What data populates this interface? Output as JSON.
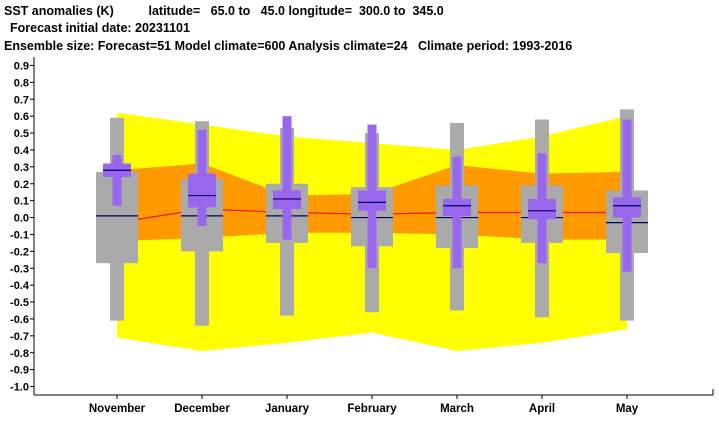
{
  "header": {
    "line1": "SST anomalies (K)          latitude=   65.0 to   45.0 longitude=  300.0 to  345.0",
    "line2": "Forecast initial date: 20231101",
    "line3": "Ensemble size: Forecast=51 Model climate=600 Analysis climate=24   Climate period: 1993-2016"
  },
  "colors": {
    "climate_outer": "#ffff00",
    "climate_inner": "#ff9900",
    "climate_median_line": "#ee1111",
    "forecast_whisker": "#aaaaaa",
    "forecast_box": "#aaaaaa",
    "forecast_median": "#000066",
    "model_box": "#9966ee",
    "model_median": "#000066"
  },
  "chart_data": {
    "type": "box",
    "ylim": [
      -1.05,
      0.95
    ],
    "yticks": [
      "0.9",
      "0.8",
      "0.7",
      "0.6",
      "0.5",
      "0.4",
      "0.3",
      "0.2",
      "0.1",
      "0.0",
      "-0.1",
      "-0.2",
      "-0.3",
      "-0.4",
      "-0.5",
      "-0.6",
      "-0.7",
      "-0.8",
      "-0.9",
      "-1.0"
    ],
    "ytick_values": [
      0.9,
      0.8,
      0.7,
      0.6,
      0.5,
      0.4,
      0.3,
      0.2,
      0.1,
      0.0,
      -0.1,
      -0.2,
      -0.3,
      -0.4,
      -0.5,
      -0.6,
      -0.7,
      -0.8,
      -0.9,
      -1.0
    ],
    "categories": [
      "November",
      "December",
      "January",
      "February",
      "March",
      "April",
      "May"
    ],
    "climate_band": {
      "outer_high": [
        0.62,
        0.55,
        0.48,
        0.44,
        0.4,
        0.48,
        0.6
      ],
      "inner_high": [
        0.28,
        0.32,
        0.13,
        0.14,
        0.31,
        0.26,
        0.27
      ],
      "median": [
        -0.03,
        0.05,
        0.03,
        0.02,
        0.03,
        0.03,
        0.03
      ],
      "inner_low": [
        -0.14,
        -0.12,
        -0.09,
        -0.09,
        -0.1,
        -0.13,
        -0.13
      ],
      "outer_low": [
        -0.71,
        -0.79,
        -0.74,
        -0.68,
        -0.79,
        -0.74,
        -0.66
      ]
    },
    "forecast_distribution": {
      "whisker_high": [
        0.59,
        0.57,
        0.53,
        0.5,
        0.56,
        0.58,
        0.64
      ],
      "box_high": [
        0.27,
        0.23,
        0.2,
        0.18,
        0.19,
        0.19,
        0.16
      ],
      "median": [
        0.01,
        0.01,
        0.01,
        0.0,
        0.0,
        0.0,
        -0.03
      ],
      "box_low": [
        -0.27,
        -0.2,
        -0.15,
        -0.17,
        -0.18,
        -0.15,
        -0.21
      ],
      "whisker_low": [
        -0.61,
        -0.64,
        -0.58,
        -0.56,
        -0.55,
        -0.59,
        -0.61
      ]
    },
    "model_distribution": {
      "whisker_high": [
        0.37,
        0.52,
        0.6,
        0.55,
        0.36,
        0.38,
        0.58
      ],
      "box_high": [
        0.32,
        0.26,
        0.16,
        0.16,
        0.11,
        0.11,
        0.12
      ],
      "median": [
        0.28,
        0.13,
        0.11,
        0.09,
        0.07,
        0.04,
        0.07
      ],
      "box_low": [
        0.24,
        0.06,
        0.05,
        0.04,
        0.01,
        -0.01,
        0.0
      ],
      "whisker_low": [
        0.07,
        -0.05,
        -0.13,
        -0.3,
        -0.3,
        -0.27,
        -0.32
      ]
    }
  }
}
